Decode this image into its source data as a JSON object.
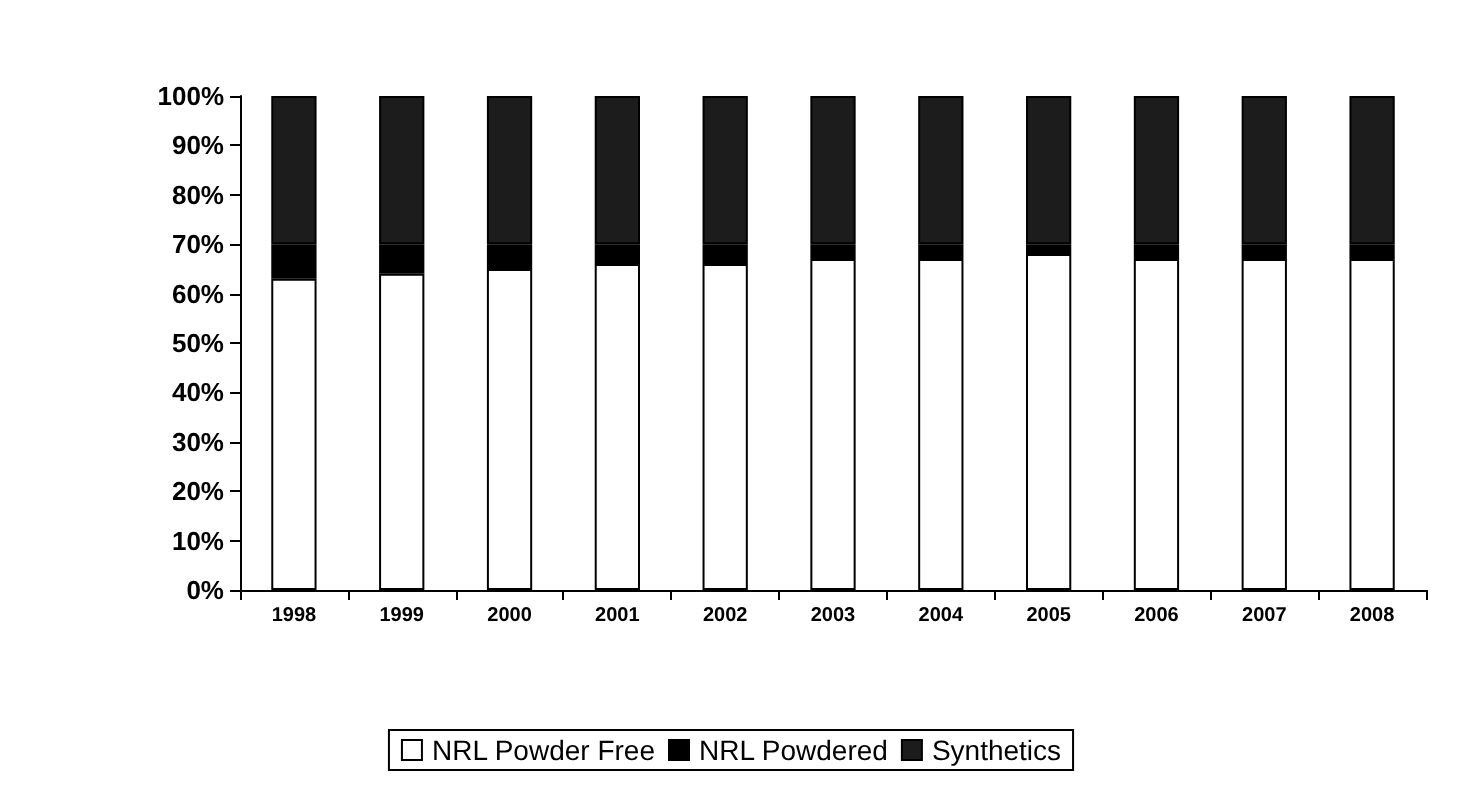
{
  "chart_data": {
    "type": "bar",
    "stacked": true,
    "categories": [
      "1998",
      "1999",
      "2000",
      "2001",
      "2002",
      "2003",
      "2004",
      "2005",
      "2006",
      "2007",
      "2008"
    ],
    "series": [
      {
        "name": "NRL Powder Free",
        "color": "#ffffff",
        "values": [
          63,
          64,
          65,
          66,
          66,
          67,
          67,
          68,
          67,
          67,
          67
        ]
      },
      {
        "name": "NRL Powdered",
        "color": "#000000",
        "values": [
          7,
          6,
          5,
          4,
          4,
          3,
          3,
          2,
          3,
          3,
          3
        ]
      },
      {
        "name": "Synthetics",
        "color": "#1c1c1c",
        "values": [
          30,
          30,
          30,
          30,
          30,
          30,
          30,
          30,
          30,
          30,
          30
        ]
      }
    ],
    "ylim": [
      0,
      100
    ],
    "yticks": [
      {
        "value": 0,
        "label": "0%"
      },
      {
        "value": 10,
        "label": "10%"
      },
      {
        "value": 20,
        "label": "20%"
      },
      {
        "value": 30,
        "label": "30%"
      },
      {
        "value": 40,
        "label": "40%"
      },
      {
        "value": 50,
        "label": "50%"
      },
      {
        "value": 60,
        "label": "60%"
      },
      {
        "value": 70,
        "label": "70%"
      },
      {
        "value": 80,
        "label": "80%"
      },
      {
        "value": 90,
        "label": "90%"
      },
      {
        "value": 100,
        "label": "100%"
      }
    ],
    "legend": "bottom"
  }
}
